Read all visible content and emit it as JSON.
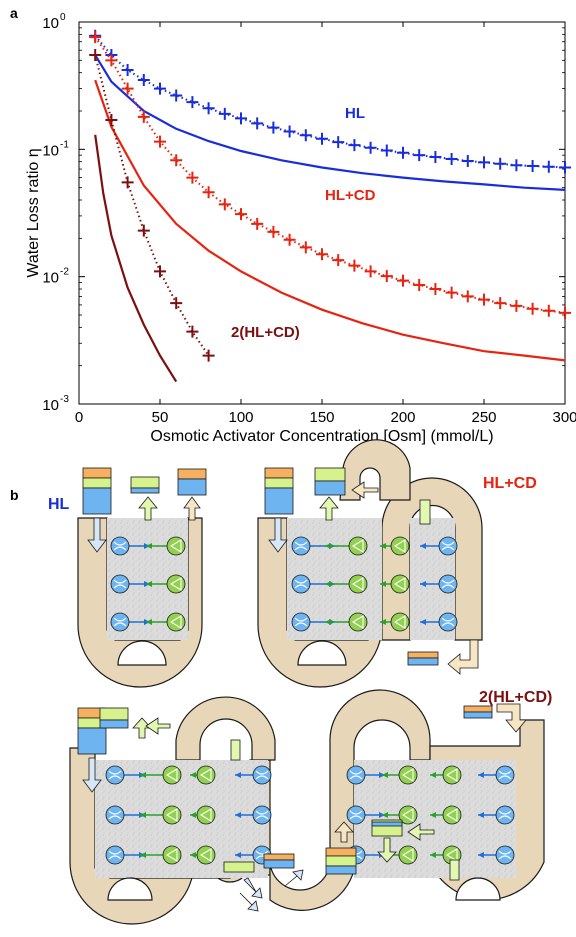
{
  "panel_a_label": "a",
  "panel_b_label": "b",
  "chart_data": {
    "type": "line",
    "title": "",
    "xlabel": "Osmotic Activator Concentration [Osm] (mmol/L)",
    "ylabel": "Water Loss ratio η",
    "xlim": [
      0,
      300
    ],
    "ylim": [
      0.001,
      1
    ],
    "yscale": "log",
    "xticks": [
      0,
      50,
      100,
      150,
      200,
      250,
      300
    ],
    "yticks": [
      {
        "value": 1,
        "label": "10",
        "exp": "0"
      },
      {
        "value": 0.1,
        "label": "10",
        "exp": "-1"
      },
      {
        "value": 0.01,
        "label": "10",
        "exp": "-2"
      },
      {
        "value": 0.001,
        "label": "10",
        "exp": "-3"
      }
    ],
    "grid": false,
    "series": [
      {
        "name": "HL",
        "label_color": "#1a2ddb",
        "color": "#1a2ddb",
        "line_style": "solid",
        "x": [
          10,
          20,
          40,
          60,
          80,
          100,
          125,
          150,
          175,
          200,
          225,
          250,
          275,
          300
        ],
        "values": [
          0.55,
          0.34,
          0.2,
          0.145,
          0.116,
          0.097,
          0.082,
          0.072,
          0.065,
          0.06,
          0.056,
          0.053,
          0.05,
          0.048
        ]
      },
      {
        "name": "HL",
        "color": "#1a2ddb",
        "line_style": "dotted",
        "marker": "+",
        "x": [
          10,
          20,
          30,
          40,
          50,
          60,
          70,
          80,
          90,
          100,
          110,
          120,
          130,
          140,
          150,
          160,
          170,
          180,
          190,
          200,
          210,
          220,
          230,
          240,
          250,
          260,
          270,
          280,
          290,
          300
        ],
        "values": [
          0.78,
          0.55,
          0.42,
          0.35,
          0.3,
          0.265,
          0.235,
          0.21,
          0.19,
          0.175,
          0.16,
          0.148,
          0.138,
          0.129,
          0.121,
          0.114,
          0.108,
          0.103,
          0.098,
          0.094,
          0.09,
          0.087,
          0.084,
          0.081,
          0.079,
          0.077,
          0.075,
          0.074,
          0.073,
          0.072
        ]
      },
      {
        "name": "HL+CD",
        "label_color": "#e8230f",
        "color": "#e8230f",
        "line_style": "solid",
        "x": [
          10,
          20,
          40,
          60,
          80,
          100,
          125,
          150,
          175,
          200,
          225,
          250,
          275,
          300
        ],
        "values": [
          0.35,
          0.15,
          0.052,
          0.026,
          0.016,
          0.011,
          0.0075,
          0.0055,
          0.0043,
          0.0035,
          0.003,
          0.0026,
          0.0024,
          0.0022
        ]
      },
      {
        "name": "HL+CD",
        "color": "#e8230f",
        "line_style": "dotted",
        "marker": "+",
        "x": [
          10,
          20,
          30,
          40,
          50,
          60,
          70,
          80,
          90,
          100,
          110,
          120,
          130,
          140,
          150,
          160,
          170,
          180,
          190,
          200,
          210,
          220,
          230,
          240,
          250,
          260,
          270,
          280,
          290,
          300
        ],
        "values": [
          0.76,
          0.5,
          0.3,
          0.18,
          0.115,
          0.082,
          0.06,
          0.046,
          0.037,
          0.031,
          0.026,
          0.0225,
          0.0195,
          0.017,
          0.015,
          0.0135,
          0.0122,
          0.011,
          0.0101,
          0.0093,
          0.0086,
          0.008,
          0.0075,
          0.007,
          0.0066,
          0.0062,
          0.0059,
          0.0056,
          0.0054,
          0.0052
        ]
      },
      {
        "name": "2(HL+CD)",
        "label_color": "#7d0f0f",
        "color": "#7d0f0f",
        "line_style": "solid",
        "x": [
          10,
          15,
          20,
          30,
          40,
          50,
          60,
          70
        ],
        "values": [
          0.13,
          0.045,
          0.021,
          0.0082,
          0.0042,
          0.0024,
          0.0015,
          0.00095
        ]
      },
      {
        "name": "2(HL+CD)",
        "color": "#7d0f0f",
        "line_style": "dotted",
        "marker": "+",
        "x": [
          10,
          20,
          30,
          40,
          50,
          60,
          70,
          80
        ],
        "values": [
          0.55,
          0.17,
          0.055,
          0.023,
          0.011,
          0.0062,
          0.0037,
          0.0024
        ]
      }
    ]
  },
  "diagram": {
    "label_hl": "HL",
    "label_hlcd": "HL+CD",
    "label_2hlcd": "2(HL+CD)",
    "colors": {
      "channel_tan": "#e8d6b8",
      "channel_stroke": "#1a1a1a",
      "membrane_gray": "#d9d9d9",
      "blue_pump": "#6eb4f0",
      "green_pump": "#92d050",
      "orange_block": "#f5b062",
      "lightgreen_block": "#d6f28c",
      "blue_block": "#6eb4f0",
      "arrow_fill": "#f7e6c4",
      "arrow_green": "#e2f7b0",
      "arrow_blue": "#d6e8f7"
    }
  }
}
